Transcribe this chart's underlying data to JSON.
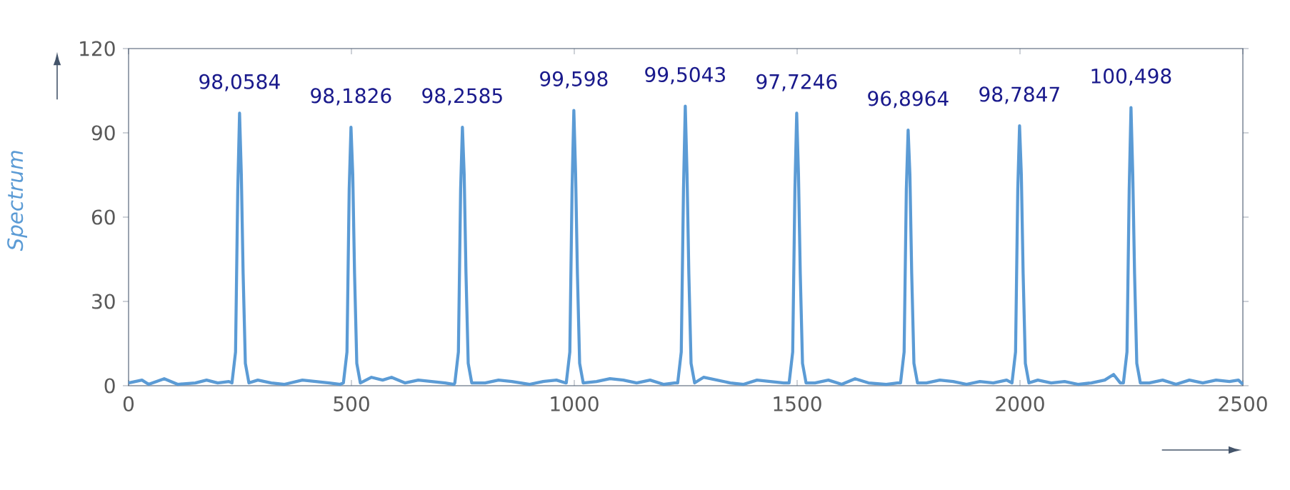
{
  "chart_data": {
    "type": "line",
    "ylabel": "Spectrum",
    "x": [
      0,
      30,
      45,
      80,
      110,
      150,
      175,
      200,
      225,
      232,
      240,
      245,
      249,
      253,
      257,
      262,
      270,
      290,
      320,
      350,
      390,
      420,
      450,
      475,
      482,
      490,
      495,
      499,
      503,
      507,
      512,
      520,
      545,
      570,
      590,
      620,
      650,
      680,
      710,
      730,
      732,
      740,
      745,
      749,
      753,
      757,
      762,
      770,
      800,
      830,
      860,
      900,
      930,
      960,
      980,
      982,
      990,
      995,
      999,
      1003,
      1007,
      1012,
      1020,
      1050,
      1080,
      1110,
      1140,
      1170,
      1200,
      1225,
      1232,
      1240,
      1245,
      1249,
      1253,
      1257,
      1262,
      1270,
      1290,
      1320,
      1350,
      1380,
      1410,
      1440,
      1470,
      1482,
      1490,
      1495,
      1499,
      1503,
      1507,
      1512,
      1520,
      1540,
      1570,
      1600,
      1630,
      1660,
      1700,
      1725,
      1732,
      1740,
      1745,
      1749,
      1753,
      1757,
      1762,
      1770,
      1790,
      1820,
      1850,
      1880,
      1910,
      1940,
      1970,
      1982,
      1990,
      1995,
      1999,
      2003,
      2007,
      2012,
      2020,
      2040,
      2070,
      2100,
      2130,
      2160,
      2190,
      2210,
      2225,
      2232,
      2240,
      2245,
      2249,
      2253,
      2257,
      2262,
      2270,
      2290,
      2320,
      2350,
      2380,
      2410,
      2440,
      2470,
      2490,
      2500
    ],
    "series": [
      {
        "color": "#5b9bd5",
        "values": [
          1,
          2,
          0.5,
          2.5,
          0.5,
          1,
          2,
          1,
          1.5,
          1,
          12,
          70,
          97,
          75,
          40,
          8,
          1,
          2,
          1,
          0.5,
          2,
          1.5,
          1,
          0.5,
          1,
          12,
          70,
          92,
          75,
          40,
          8,
          1,
          3,
          2,
          3,
          1,
          2,
          1.5,
          1,
          0.5,
          1,
          12,
          70,
          92,
          75,
          40,
          8,
          1,
          1,
          2,
          1.5,
          0.5,
          1.5,
          2,
          1,
          1,
          12,
          70,
          98,
          75,
          40,
          8,
          1,
          1.5,
          2.5,
          2,
          1,
          2,
          0.5,
          1,
          1,
          12,
          70,
          99.5,
          75,
          40,
          8,
          1,
          3,
          2,
          1,
          0.5,
          2,
          1.5,
          1,
          1,
          12,
          70,
          97,
          75,
          40,
          8,
          1,
          1,
          2,
          0.5,
          2.5,
          1,
          0.5,
          1,
          1,
          12,
          70,
          91,
          75,
          40,
          8,
          1,
          1,
          2,
          1.5,
          0.5,
          1.5,
          1,
          2,
          1,
          12,
          70,
          92.5,
          75,
          40,
          8,
          1,
          2,
          1,
          1.5,
          0.5,
          1,
          2,
          4,
          1,
          1,
          12,
          70,
          99,
          75,
          40,
          8,
          1,
          1,
          2,
          0.5,
          2,
          1,
          2,
          1.5,
          2,
          0.5
        ]
      }
    ],
    "xlim": [
      0,
      2500
    ],
    "ylim": [
      0,
      120
    ],
    "xticks": [
      0,
      500,
      1000,
      1500,
      2000,
      2500
    ],
    "yticks": [
      0,
      30,
      60,
      90,
      120
    ],
    "annotations": [
      {
        "text": "98,0584",
        "x": 249,
        "y": 97
      },
      {
        "text": "98,1826",
        "x": 499,
        "y": 92
      },
      {
        "text": "98,2585",
        "x": 749,
        "y": 92
      },
      {
        "text": "99,598",
        "x": 999,
        "y": 98
      },
      {
        "text": "99,5043",
        "x": 1249,
        "y": 99.5
      },
      {
        "text": "97,7246",
        "x": 1499,
        "y": 97
      },
      {
        "text": "96,8964",
        "x": 1749,
        "y": 91
      },
      {
        "text": "98,7847",
        "x": 1999,
        "y": 92.5
      },
      {
        "text": "100,498",
        "x": 2249,
        "y": 99
      }
    ]
  }
}
